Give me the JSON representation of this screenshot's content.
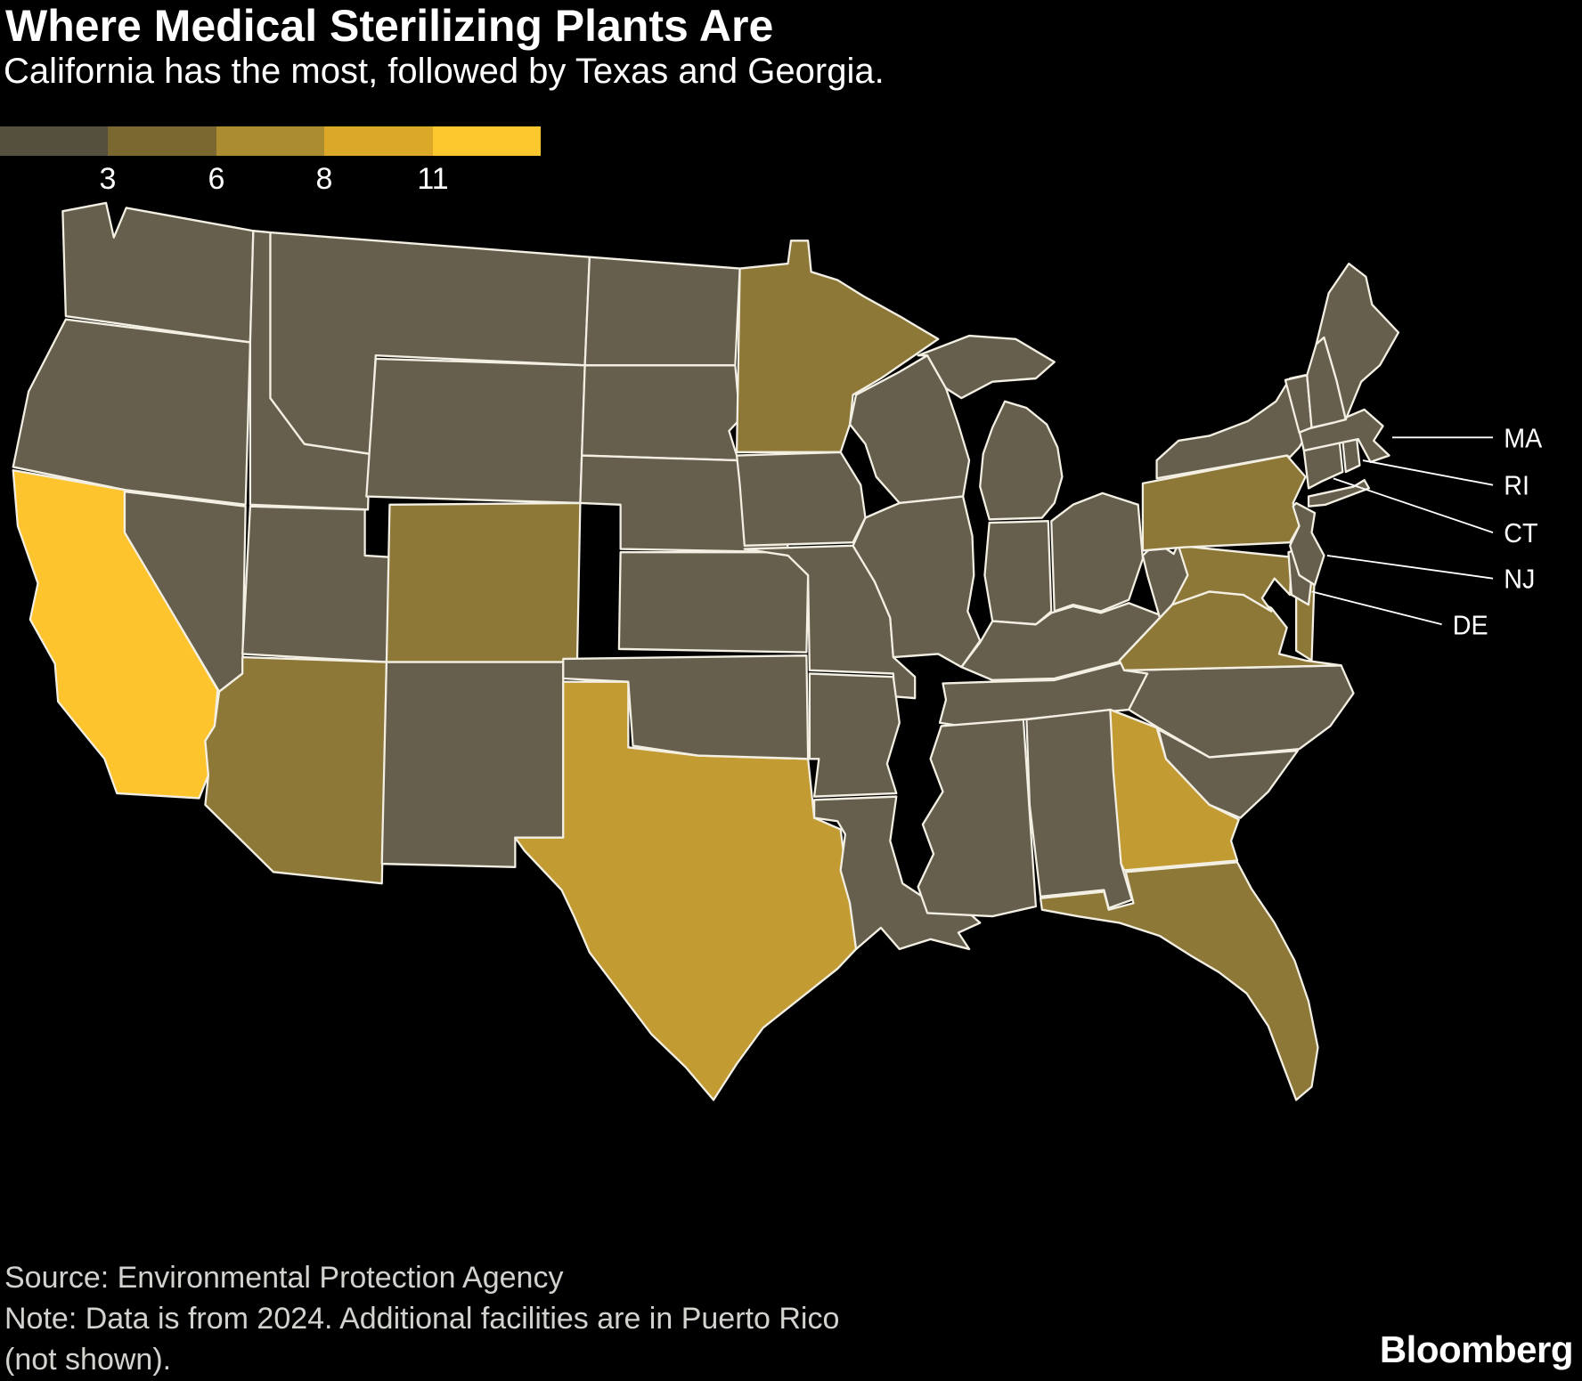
{
  "header": {
    "title": "Where Medical Sterilizing Plants Are",
    "subtitle": "California has the most, followed by Texas and Georgia."
  },
  "legend": {
    "ticks": [
      "3",
      "6",
      "8",
      "11"
    ],
    "colors": [
      "#55503D",
      "#7A6830",
      "#AC8C30",
      "#DCA827",
      "#FDC72E"
    ]
  },
  "map_callouts": [
    {
      "label": "MA"
    },
    {
      "label": "RI"
    },
    {
      "label": "CT"
    },
    {
      "label": "NJ"
    },
    {
      "label": "DE"
    }
  ],
  "footer": {
    "source": "Source: Environmental Protection Agency",
    "note_line1": "Note: Data is from 2024. Additional facilities are in Puerto Rico",
    "note_line2": "(not shown).",
    "logo": "Bloomberg"
  },
  "colors": {
    "background": "#000000",
    "state_border": "#F3EFE3",
    "title_text": "#FFFFFF",
    "footnote_text": "#D4D2CE"
  },
  "chart_data": {
    "type": "choropleth",
    "region": "United States, lower 48 states",
    "metric": "Number of medical sterilizing plants per state, 2024",
    "legend_thresholds": [
      3,
      6,
      8,
      11
    ],
    "legend_max_label": "11",
    "tier_colors": {
      "lowest": "#665F4D",
      "mid": "#8E7838",
      "high": "#C29B33",
      "highest": "#FDC42D"
    },
    "tier_notes": {
      "highest": "California (most, ~11)",
      "high": "Texas, Georgia (~8)",
      "mid": "mid-range states",
      "lowest": "few or no plants"
    },
    "state_tiers": {
      "CA": "highest",
      "TX": "high",
      "GA": "high",
      "MN": "mid",
      "CO": "mid",
      "AZ": "mid",
      "PA": "mid",
      "MD": "mid",
      "VA": "mid",
      "FL": "mid",
      "WA": "lowest",
      "OR": "lowest",
      "NV": "lowest",
      "ID": "lowest",
      "MT": "lowest",
      "WY": "lowest",
      "UT": "lowest",
      "NM": "lowest",
      "ND": "lowest",
      "SD": "lowest",
      "NE": "lowest",
      "KS": "lowest",
      "OK": "lowest",
      "IA": "lowest",
      "MO": "lowest",
      "AR": "lowest",
      "LA": "lowest",
      "WI": "lowest",
      "IL": "lowest",
      "MI": "lowest",
      "IN": "lowest",
      "OH": "lowest",
      "KY": "lowest",
      "TN": "lowest",
      "MS": "lowest",
      "AL": "lowest",
      "SC": "lowest",
      "NC": "lowest",
      "WV": "lowest",
      "DE": "lowest",
      "NJ": "lowest",
      "NY": "lowest",
      "CT": "lowest",
      "RI": "lowest",
      "MA": "lowest",
      "VT": "lowest",
      "NH": "lowest",
      "ME": "lowest"
    }
  }
}
